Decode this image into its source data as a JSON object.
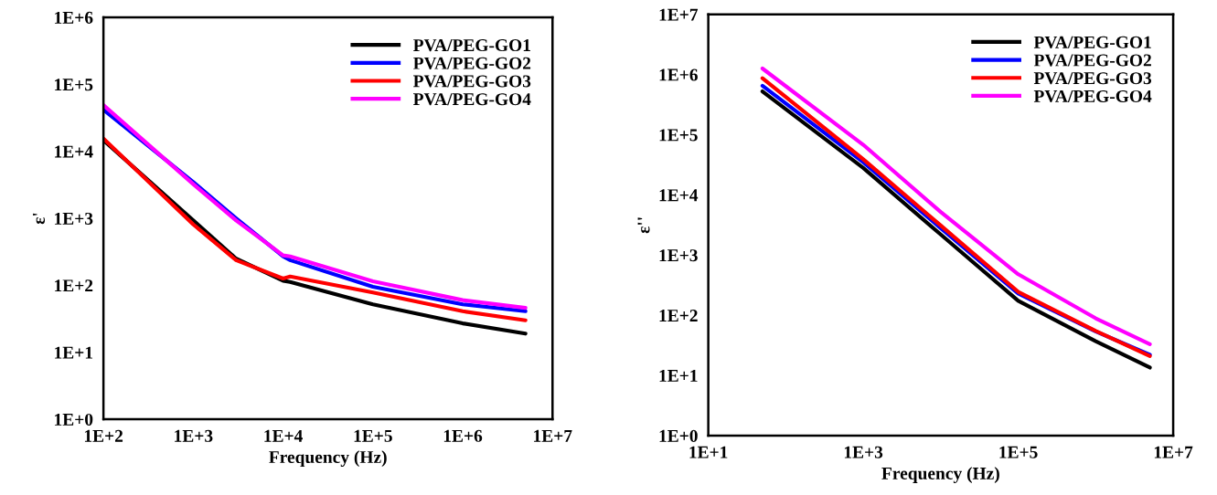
{
  "chart_data": [
    {
      "type": "line",
      "xlabel": "Frequency (Hz)",
      "ylabel": "ε'",
      "log": "xy",
      "grid": false,
      "legend": "top right",
      "marker": "none",
      "line_style": "solid",
      "xlim": [
        100,
        10000000
      ],
      "ylim": [
        1,
        1000000
      ],
      "xticks": [
        {
          "value": 100,
          "label": "1E+2"
        },
        {
          "value": 1000,
          "label": "1E+3"
        },
        {
          "value": 10000,
          "label": "1E+4"
        },
        {
          "value": 100000,
          "label": "1E+5"
        },
        {
          "value": 1000000,
          "label": "1E+6"
        },
        {
          "value": 10000000,
          "label": "1E+7"
        }
      ],
      "yticks": [
        {
          "value": 1,
          "label": "1E+0"
        },
        {
          "value": 10,
          "label": "1E+1"
        },
        {
          "value": 100,
          "label": "1E+2"
        },
        {
          "value": 1000,
          "label": "1E+3"
        },
        {
          "value": 10000,
          "label": "1E+4"
        },
        {
          "value": 100000,
          "label": "1E+5"
        },
        {
          "value": 1000000,
          "label": "1E+6"
        }
      ],
      "x": [
        100,
        1000,
        3000,
        10000,
        12000,
        100000,
        1000000,
        5000000
      ],
      "series": [
        {
          "name": "PVA/PEG-GO1",
          "color": "#000000",
          "values": [
            14600,
            930,
            250,
            117,
            112,
            52,
            27,
            19
          ]
        },
        {
          "name": "PVA/PEG-GO2",
          "color": "#0000ff",
          "values": [
            41700,
            3470,
            1000,
            270,
            237,
            95,
            52,
            41
          ]
        },
        {
          "name": "PVA/PEG-GO3",
          "color": "#ff0000",
          "values": [
            15500,
            810,
            237,
            126,
            135,
            78,
            41,
            30
          ]
        },
        {
          "name": "PVA/PEG-GO4",
          "color": "#ff00ff",
          "values": [
            49000,
            3240,
            930,
            280,
            270,
            115,
            60,
            46
          ]
        }
      ]
    },
    {
      "type": "line",
      "xlabel": "Frequency (Hz)",
      "ylabel": "ε''",
      "log": "xy",
      "grid": false,
      "legend": "top right",
      "marker": "none",
      "line_style": "solid",
      "xlim": [
        10,
        10000000
      ],
      "ylim": [
        1,
        10000000
      ],
      "xticks": [
        {
          "value": 10,
          "label": "1E+1"
        },
        {
          "value": 1000,
          "label": "1E+3"
        },
        {
          "value": 100000,
          "label": "1E+5"
        },
        {
          "value": 10000000,
          "label": "1E+7"
        }
      ],
      "yticks": [
        {
          "value": 1,
          "label": "1E+0"
        },
        {
          "value": 10,
          "label": "1E+1"
        },
        {
          "value": 100,
          "label": "1E+2"
        },
        {
          "value": 1000,
          "label": "1E+3"
        },
        {
          "value": 10000,
          "label": "1E+4"
        },
        {
          "value": 100000,
          "label": "1E+5"
        },
        {
          "value": 1000000,
          "label": "1E+6"
        },
        {
          "value": 10000000,
          "label": "1E+7"
        }
      ],
      "x": [
        50,
        1000,
        10000,
        100000,
        1000000,
        5000000
      ],
      "series": [
        {
          "name": "PVA/PEG-GO1",
          "color": "#000000",
          "values": [
            525000,
            28000,
            2200,
            174,
            37,
            13.5
          ]
        },
        {
          "name": "PVA/PEG-GO2",
          "color": "#0000ff",
          "values": [
            650000,
            35000,
            2800,
            230,
            54,
            22
          ]
        },
        {
          "name": "PVA/PEG-GO3",
          "color": "#ff0000",
          "values": [
            870000,
            39000,
            3100,
            245,
            55,
            21
          ]
        },
        {
          "name": "PVA/PEG-GO4",
          "color": "#ff00ff",
          "values": [
            1260000,
            68000,
            5200,
            480,
            89,
            33
          ]
        }
      ]
    }
  ]
}
